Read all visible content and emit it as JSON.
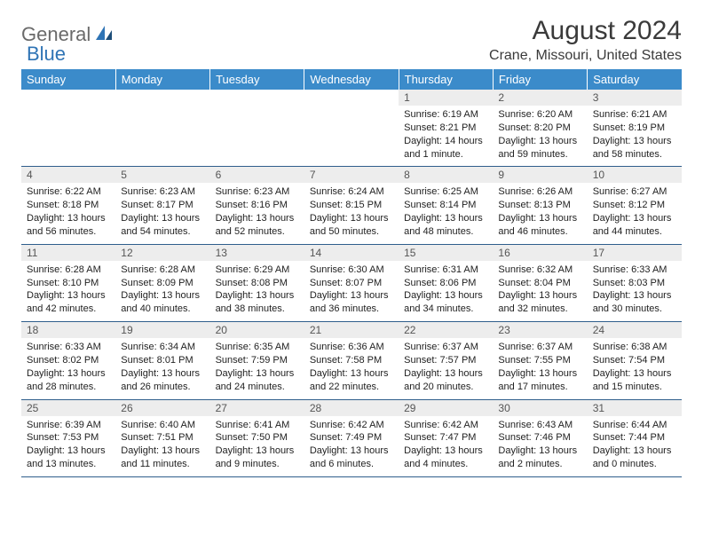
{
  "logo": {
    "general": "General",
    "blue": "Blue"
  },
  "title": "August 2024",
  "location": "Crane, Missouri, United States",
  "day_headers": [
    "Sunday",
    "Monday",
    "Tuesday",
    "Wednesday",
    "Thursday",
    "Friday",
    "Saturday"
  ],
  "colors": {
    "header_bg": "#3b8bca",
    "header_text": "#ffffff",
    "daynum_bg": "#ededed",
    "border": "#2f5e8c",
    "logo_gray": "#6a6a6a",
    "logo_blue": "#2f74b5"
  },
  "weeks": [
    [
      {
        "n": "",
        "lines": []
      },
      {
        "n": "",
        "lines": []
      },
      {
        "n": "",
        "lines": []
      },
      {
        "n": "",
        "lines": []
      },
      {
        "n": "1",
        "lines": [
          "Sunrise: 6:19 AM",
          "Sunset: 8:21 PM",
          "Daylight: 14 hours and 1 minute."
        ]
      },
      {
        "n": "2",
        "lines": [
          "Sunrise: 6:20 AM",
          "Sunset: 8:20 PM",
          "Daylight: 13 hours and 59 minutes."
        ]
      },
      {
        "n": "3",
        "lines": [
          "Sunrise: 6:21 AM",
          "Sunset: 8:19 PM",
          "Daylight: 13 hours and 58 minutes."
        ]
      }
    ],
    [
      {
        "n": "4",
        "lines": [
          "Sunrise: 6:22 AM",
          "Sunset: 8:18 PM",
          "Daylight: 13 hours and 56 minutes."
        ]
      },
      {
        "n": "5",
        "lines": [
          "Sunrise: 6:23 AM",
          "Sunset: 8:17 PM",
          "Daylight: 13 hours and 54 minutes."
        ]
      },
      {
        "n": "6",
        "lines": [
          "Sunrise: 6:23 AM",
          "Sunset: 8:16 PM",
          "Daylight: 13 hours and 52 minutes."
        ]
      },
      {
        "n": "7",
        "lines": [
          "Sunrise: 6:24 AM",
          "Sunset: 8:15 PM",
          "Daylight: 13 hours and 50 minutes."
        ]
      },
      {
        "n": "8",
        "lines": [
          "Sunrise: 6:25 AM",
          "Sunset: 8:14 PM",
          "Daylight: 13 hours and 48 minutes."
        ]
      },
      {
        "n": "9",
        "lines": [
          "Sunrise: 6:26 AM",
          "Sunset: 8:13 PM",
          "Daylight: 13 hours and 46 minutes."
        ]
      },
      {
        "n": "10",
        "lines": [
          "Sunrise: 6:27 AM",
          "Sunset: 8:12 PM",
          "Daylight: 13 hours and 44 minutes."
        ]
      }
    ],
    [
      {
        "n": "11",
        "lines": [
          "Sunrise: 6:28 AM",
          "Sunset: 8:10 PM",
          "Daylight: 13 hours and 42 minutes."
        ]
      },
      {
        "n": "12",
        "lines": [
          "Sunrise: 6:28 AM",
          "Sunset: 8:09 PM",
          "Daylight: 13 hours and 40 minutes."
        ]
      },
      {
        "n": "13",
        "lines": [
          "Sunrise: 6:29 AM",
          "Sunset: 8:08 PM",
          "Daylight: 13 hours and 38 minutes."
        ]
      },
      {
        "n": "14",
        "lines": [
          "Sunrise: 6:30 AM",
          "Sunset: 8:07 PM",
          "Daylight: 13 hours and 36 minutes."
        ]
      },
      {
        "n": "15",
        "lines": [
          "Sunrise: 6:31 AM",
          "Sunset: 8:06 PM",
          "Daylight: 13 hours and 34 minutes."
        ]
      },
      {
        "n": "16",
        "lines": [
          "Sunrise: 6:32 AM",
          "Sunset: 8:04 PM",
          "Daylight: 13 hours and 32 minutes."
        ]
      },
      {
        "n": "17",
        "lines": [
          "Sunrise: 6:33 AM",
          "Sunset: 8:03 PM",
          "Daylight: 13 hours and 30 minutes."
        ]
      }
    ],
    [
      {
        "n": "18",
        "lines": [
          "Sunrise: 6:33 AM",
          "Sunset: 8:02 PM",
          "Daylight: 13 hours and 28 minutes."
        ]
      },
      {
        "n": "19",
        "lines": [
          "Sunrise: 6:34 AM",
          "Sunset: 8:01 PM",
          "Daylight: 13 hours and 26 minutes."
        ]
      },
      {
        "n": "20",
        "lines": [
          "Sunrise: 6:35 AM",
          "Sunset: 7:59 PM",
          "Daylight: 13 hours and 24 minutes."
        ]
      },
      {
        "n": "21",
        "lines": [
          "Sunrise: 6:36 AM",
          "Sunset: 7:58 PM",
          "Daylight: 13 hours and 22 minutes."
        ]
      },
      {
        "n": "22",
        "lines": [
          "Sunrise: 6:37 AM",
          "Sunset: 7:57 PM",
          "Daylight: 13 hours and 20 minutes."
        ]
      },
      {
        "n": "23",
        "lines": [
          "Sunrise: 6:37 AM",
          "Sunset: 7:55 PM",
          "Daylight: 13 hours and 17 minutes."
        ]
      },
      {
        "n": "24",
        "lines": [
          "Sunrise: 6:38 AM",
          "Sunset: 7:54 PM",
          "Daylight: 13 hours and 15 minutes."
        ]
      }
    ],
    [
      {
        "n": "25",
        "lines": [
          "Sunrise: 6:39 AM",
          "Sunset: 7:53 PM",
          "Daylight: 13 hours and 13 minutes."
        ]
      },
      {
        "n": "26",
        "lines": [
          "Sunrise: 6:40 AM",
          "Sunset: 7:51 PM",
          "Daylight: 13 hours and 11 minutes."
        ]
      },
      {
        "n": "27",
        "lines": [
          "Sunrise: 6:41 AM",
          "Sunset: 7:50 PM",
          "Daylight: 13 hours and 9 minutes."
        ]
      },
      {
        "n": "28",
        "lines": [
          "Sunrise: 6:42 AM",
          "Sunset: 7:49 PM",
          "Daylight: 13 hours and 6 minutes."
        ]
      },
      {
        "n": "29",
        "lines": [
          "Sunrise: 6:42 AM",
          "Sunset: 7:47 PM",
          "Daylight: 13 hours and 4 minutes."
        ]
      },
      {
        "n": "30",
        "lines": [
          "Sunrise: 6:43 AM",
          "Sunset: 7:46 PM",
          "Daylight: 13 hours and 2 minutes."
        ]
      },
      {
        "n": "31",
        "lines": [
          "Sunrise: 6:44 AM",
          "Sunset: 7:44 PM",
          "Daylight: 13 hours and 0 minutes."
        ]
      }
    ]
  ]
}
